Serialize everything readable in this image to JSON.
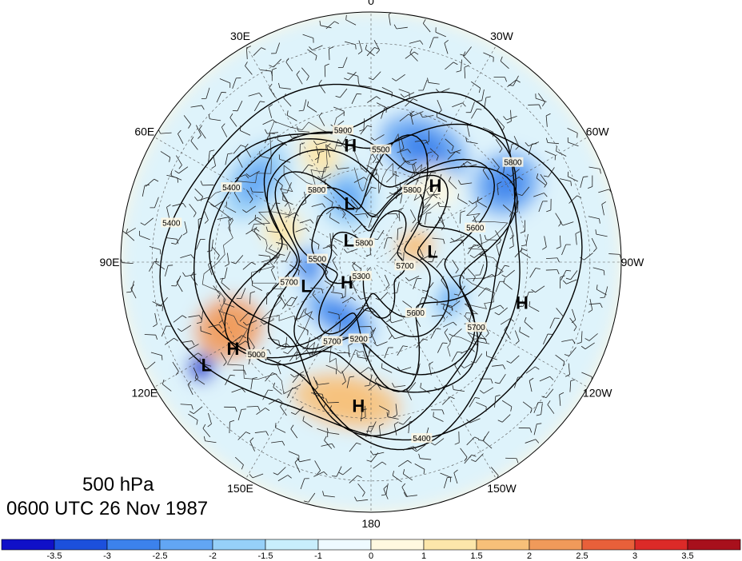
{
  "title": {
    "level": "500 hPa",
    "time": "0600 UTC 26 Nov 1987"
  },
  "longitude_labels": [
    {
      "text": "0",
      "lon": 0
    },
    {
      "text": "30W",
      "lon": -30
    },
    {
      "text": "60W",
      "lon": -60
    },
    {
      "text": "90W",
      "lon": -90
    },
    {
      "text": "120W",
      "lon": -120
    },
    {
      "text": "150W",
      "lon": -150
    },
    {
      "text": "180",
      "lon": 180
    },
    {
      "text": "150E",
      "lon": 150
    },
    {
      "text": "120E",
      "lon": 120
    },
    {
      "text": "90E",
      "lon": 90
    },
    {
      "text": "60E",
      "lon": 60
    },
    {
      "text": "30E",
      "lon": 30
    }
  ],
  "pressure_centers": [
    {
      "type": "H",
      "lon": 10,
      "lat": 52
    },
    {
      "type": "L",
      "lon": 20,
      "lat": 70
    },
    {
      "type": "H",
      "lon": -40,
      "lat": 58
    },
    {
      "type": "L",
      "lon": 45,
      "lat": 80
    },
    {
      "type": "L",
      "lon": -80,
      "lat": 70
    },
    {
      "type": "H",
      "lon": -105,
      "lat": 40
    },
    {
      "type": "L",
      "lon": 122,
      "lat": 28
    },
    {
      "type": "H",
      "lon": 122,
      "lat": 38
    },
    {
      "type": "L",
      "lon": 110,
      "lat": 68
    },
    {
      "type": "H",
      "lon": 130,
      "lat": 80
    },
    {
      "type": "H",
      "lon": 175,
      "lat": 44
    }
  ],
  "contour_labels": [
    "5800",
    "5500",
    "5700",
    "5600",
    "5600",
    "5500",
    "5400",
    "5000",
    "5400",
    "5700",
    "5800",
    "5800",
    "5700",
    "5200",
    "5700",
    "5800",
    "5900",
    "5400",
    "5300"
  ],
  "colorbar": {
    "tick_labels": [
      "-3.5",
      "-3",
      "-2.5",
      "-2",
      "-1.5",
      "-1",
      "0",
      "1",
      "1.5",
      "2",
      "2.5",
      "3",
      "3.5"
    ],
    "colors": [
      "#1010c8",
      "#1c50dc",
      "#3c82ec",
      "#62a6f4",
      "#96d0f8",
      "#c8eefc",
      "#eefaff",
      "#fff8e0",
      "#fce6aa",
      "#f7c079",
      "#f09a5a",
      "#e8603a",
      "#dc2a28",
      "#a8101c"
    ]
  },
  "anomaly_blobs": [
    {
      "lon": 55,
      "lat": 45,
      "rx": 55,
      "ry": 35,
      "v": -2
    },
    {
      "lon": 20,
      "lat": 68,
      "rx": 35,
      "ry": 40,
      "v": -2
    },
    {
      "lon": -25,
      "lat": 50,
      "rx": 60,
      "ry": 40,
      "v": -2.5
    },
    {
      "lon": -60,
      "lat": 40,
      "rx": 40,
      "ry": 45,
      "v": -2.5
    },
    {
      "lon": 95,
      "lat": 70,
      "rx": 25,
      "ry": 20,
      "v": -2.5
    },
    {
      "lon": -115,
      "lat": 62,
      "rx": 30,
      "ry": 20,
      "v": -2
    },
    {
      "lon": 150,
      "lat": 70,
      "rx": 50,
      "ry": 25,
      "v": -2.5
    },
    {
      "lon": 115,
      "lat": 40,
      "rx": 40,
      "ry": 45,
      "v": 2.5
    },
    {
      "lon": 25,
      "lat": 52,
      "rx": 25,
      "ry": 30,
      "v": 1.5
    },
    {
      "lon": -70,
      "lat": 75,
      "rx": 20,
      "ry": 25,
      "v": 2
    },
    {
      "lon": 170,
      "lat": 45,
      "rx": 70,
      "ry": 35,
      "v": 2
    },
    {
      "lon": 122,
      "lat": 26,
      "rx": 18,
      "ry": 18,
      "v": -3.5
    },
    {
      "lon": 70,
      "lat": 60,
      "rx": 25,
      "ry": 25,
      "v": 1.5
    },
    {
      "lon": -40,
      "lat": 58,
      "rx": 30,
      "ry": 25,
      "v": 1
    }
  ]
}
